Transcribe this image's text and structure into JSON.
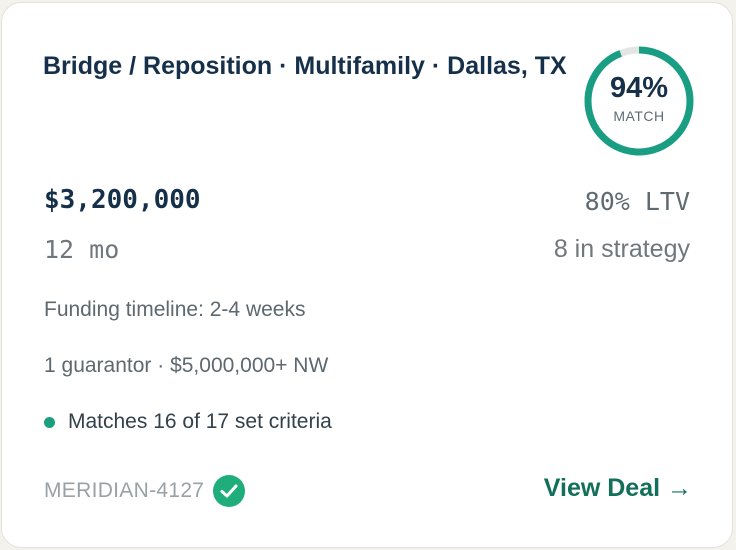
{
  "deal": {
    "title": "Bridge / Reposition · Multifamily · Dallas, TX",
    "amount": "$3,200,000",
    "term": "12 mo",
    "ltv": "80% LTV",
    "strategy": "8 in strategy",
    "funding_timeline": "Funding timeline: 2-4 weeks",
    "guarantor": "1 guarantor · $5,000,000+ NW",
    "criteria": "Matches 16 of 17 set criteria",
    "deal_id": "MERIDIAN-4127",
    "view_link": "View Deal →"
  },
  "match": {
    "percent_label": "94%",
    "percent_value": 94,
    "label": "MATCH"
  },
  "icons": {
    "verified": "check-circle-icon",
    "criteria_status": "status-dot-icon"
  },
  "colors": {
    "accent": "#1a9e83",
    "ring_track": "#e4e6e6",
    "verified": "#1fae7b",
    "title": "#16304a",
    "link": "#12705a"
  }
}
